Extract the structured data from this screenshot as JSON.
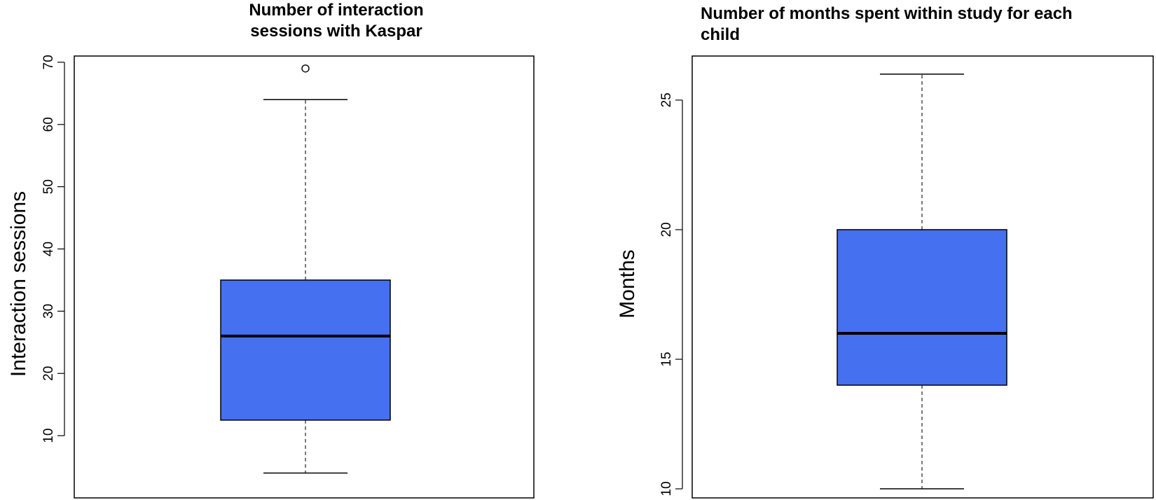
{
  "chart_data": [
    {
      "type": "box",
      "title": "Number of interaction sessions with Kaspar",
      "title_lines": [
        "Number of interaction",
        "sessions with Kaspar"
      ],
      "xlabel": "",
      "ylabel": "Interaction sessions",
      "ylim": [
        0,
        71
      ],
      "yticks": [
        10,
        20,
        30,
        40,
        50,
        60,
        70
      ],
      "box": {
        "whisker_low": 4,
        "q1": 12.5,
        "median": 26,
        "q3": 35,
        "whisker_high": 64
      },
      "outliers": [
        69
      ],
      "fill_color": "#4570ef",
      "grid": false,
      "legend": "none"
    },
    {
      "type": "box",
      "title": "Number of months spent within study for each child",
      "title_lines": [
        "Number of months spent within study for each",
        "child"
      ],
      "xlabel": "",
      "ylabel": "Months",
      "ylim": [
        9.65,
        26.7
      ],
      "yticks": [
        10,
        15,
        20,
        25
      ],
      "box": {
        "whisker_low": 10,
        "q1": 14,
        "median": 16,
        "q3": 20,
        "whisker_high": 26
      },
      "outliers": [],
      "fill_color": "#4570ef",
      "grid": false,
      "legend": "none"
    }
  ]
}
